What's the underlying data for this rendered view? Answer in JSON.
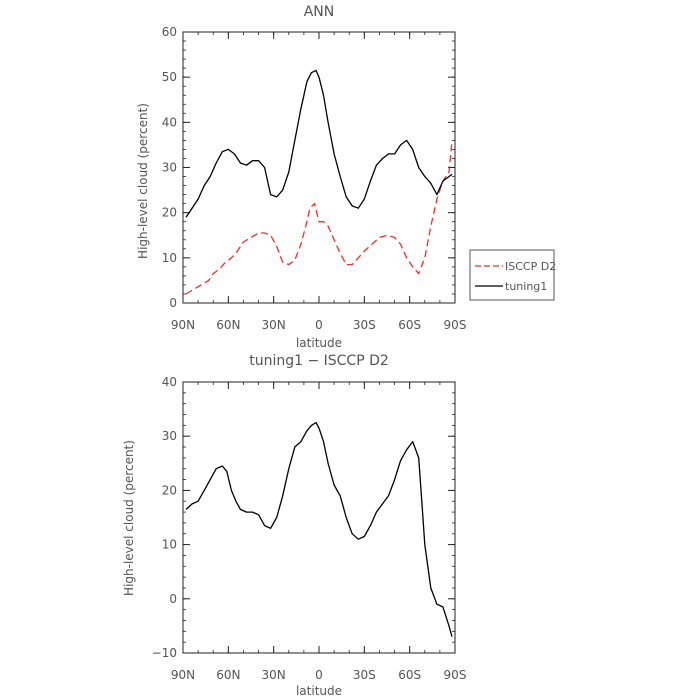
{
  "colors": {
    "axes": "#222222",
    "text": "#555555",
    "isccp_d2": "#e8322a",
    "tuning1": "#000000"
  },
  "chart_data": [
    {
      "type": "line",
      "title": "ANN",
      "xlabel": "latitude",
      "ylabel": "High-level cloud (percent)",
      "xlim": [
        90,
        -90
      ],
      "ylim": [
        0,
        60
      ],
      "x_ticks": [
        90,
        60,
        30,
        0,
        -30,
        -60,
        -90
      ],
      "x_tick_labels": [
        "90N",
        "60N",
        "30N",
        "0",
        "30S",
        "60S",
        "90S"
      ],
      "y_ticks": [
        0,
        10,
        20,
        30,
        40,
        50,
        60
      ],
      "y_tick_labels": [
        "0",
        "10",
        "20",
        "30",
        "40",
        "50",
        "60"
      ],
      "legend": {
        "placement": "right",
        "entries": [
          "ISCCP D2",
          "tuning1"
        ]
      },
      "series": [
        {
          "name": "ISCCP D2",
          "style": "dashed",
          "color": "#e8322a",
          "x": [
            88,
            83,
            78,
            73,
            70,
            66,
            62,
            58,
            55,
            50,
            45,
            40,
            36,
            32,
            28,
            24,
            20,
            16,
            12,
            8,
            6,
            3,
            0,
            -3,
            -6,
            -10,
            -14,
            -18,
            -22,
            -26,
            -30,
            -35,
            -40,
            -45,
            -50,
            -54,
            -58,
            -62,
            -66,
            -70,
            -74,
            -78,
            -82,
            -86,
            -88
          ],
          "y": [
            2,
            3,
            4,
            5,
            6.5,
            7.5,
            9,
            10,
            11,
            13.5,
            14.5,
            15.5,
            15.5,
            15,
            12.5,
            9,
            8.5,
            9.5,
            13,
            18,
            21,
            22,
            18,
            18,
            17,
            14,
            11,
            8.5,
            8.5,
            10,
            11.5,
            13,
            14.5,
            15,
            14.5,
            13,
            10,
            8,
            6.5,
            10,
            17,
            23,
            27,
            29,
            36
          ]
        },
        {
          "name": "tuning1",
          "style": "solid",
          "color": "#000000",
          "x": [
            88,
            84,
            80,
            76,
            72,
            68,
            64,
            60,
            56,
            52,
            48,
            44,
            40,
            36,
            32,
            28,
            24,
            20,
            16,
            12,
            8,
            5,
            2,
            0,
            -3,
            -6,
            -10,
            -14,
            -18,
            -22,
            -26,
            -30,
            -34,
            -38,
            -42,
            -46,
            -50,
            -54,
            -58,
            -62,
            -66,
            -70,
            -74,
            -78,
            -82,
            -86,
            -88
          ],
          "y": [
            19,
            21,
            23,
            26,
            28,
            31,
            33.5,
            34,
            33,
            31,
            30.5,
            31.5,
            31.5,
            30,
            24,
            23.5,
            25,
            29,
            36,
            43,
            49,
            51,
            51.5,
            50,
            46,
            40,
            33,
            28,
            23.5,
            21.5,
            21,
            23,
            27,
            30.5,
            32,
            33,
            33,
            35,
            36,
            34,
            30,
            28,
            26.5,
            24,
            27,
            28,
            28.5
          ]
        }
      ]
    },
    {
      "type": "line",
      "title": "tuning1 − ISCCP D2",
      "xlabel": "latitude",
      "ylabel": "High-level cloud (percent)",
      "xlim": [
        90,
        -90
      ],
      "ylim": [
        -10,
        40
      ],
      "x_ticks": [
        90,
        60,
        30,
        0,
        -30,
        -60,
        -90
      ],
      "x_tick_labels": [
        "90N",
        "60N",
        "30N",
        "0",
        "30S",
        "60S",
        "90S"
      ],
      "y_ticks": [
        -10,
        0,
        10,
        20,
        30,
        40
      ],
      "y_tick_labels": [
        "−10",
        "0",
        "10",
        "20",
        "30",
        "40"
      ],
      "series": [
        {
          "style": "solid",
          "color": "#000000",
          "x": [
            88,
            84,
            80,
            76,
            72,
            68,
            64,
            61,
            58,
            55,
            52,
            48,
            44,
            40,
            36,
            32,
            28,
            24,
            20,
            16,
            12,
            8,
            5,
            2,
            0,
            -3,
            -6,
            -10,
            -14,
            -18,
            -22,
            -26,
            -30,
            -34,
            -38,
            -42,
            -46,
            -50,
            -54,
            -58,
            -62,
            -66,
            -68,
            -70,
            -74,
            -78,
            -82,
            -86,
            -88
          ],
          "y": [
            16.5,
            17.5,
            18,
            20,
            22,
            24,
            24.5,
            23.5,
            20,
            18,
            16.5,
            16,
            16,
            15.5,
            13.5,
            13,
            15,
            19,
            24,
            28,
            29,
            31,
            32,
            32.5,
            31.5,
            29,
            25,
            21,
            19,
            15,
            12,
            11,
            11.5,
            13.5,
            16,
            17.5,
            19,
            22,
            25.5,
            27.5,
            29,
            26,
            18,
            10,
            2,
            -1,
            -1.5,
            -5,
            -7
          ]
        }
      ]
    }
  ]
}
